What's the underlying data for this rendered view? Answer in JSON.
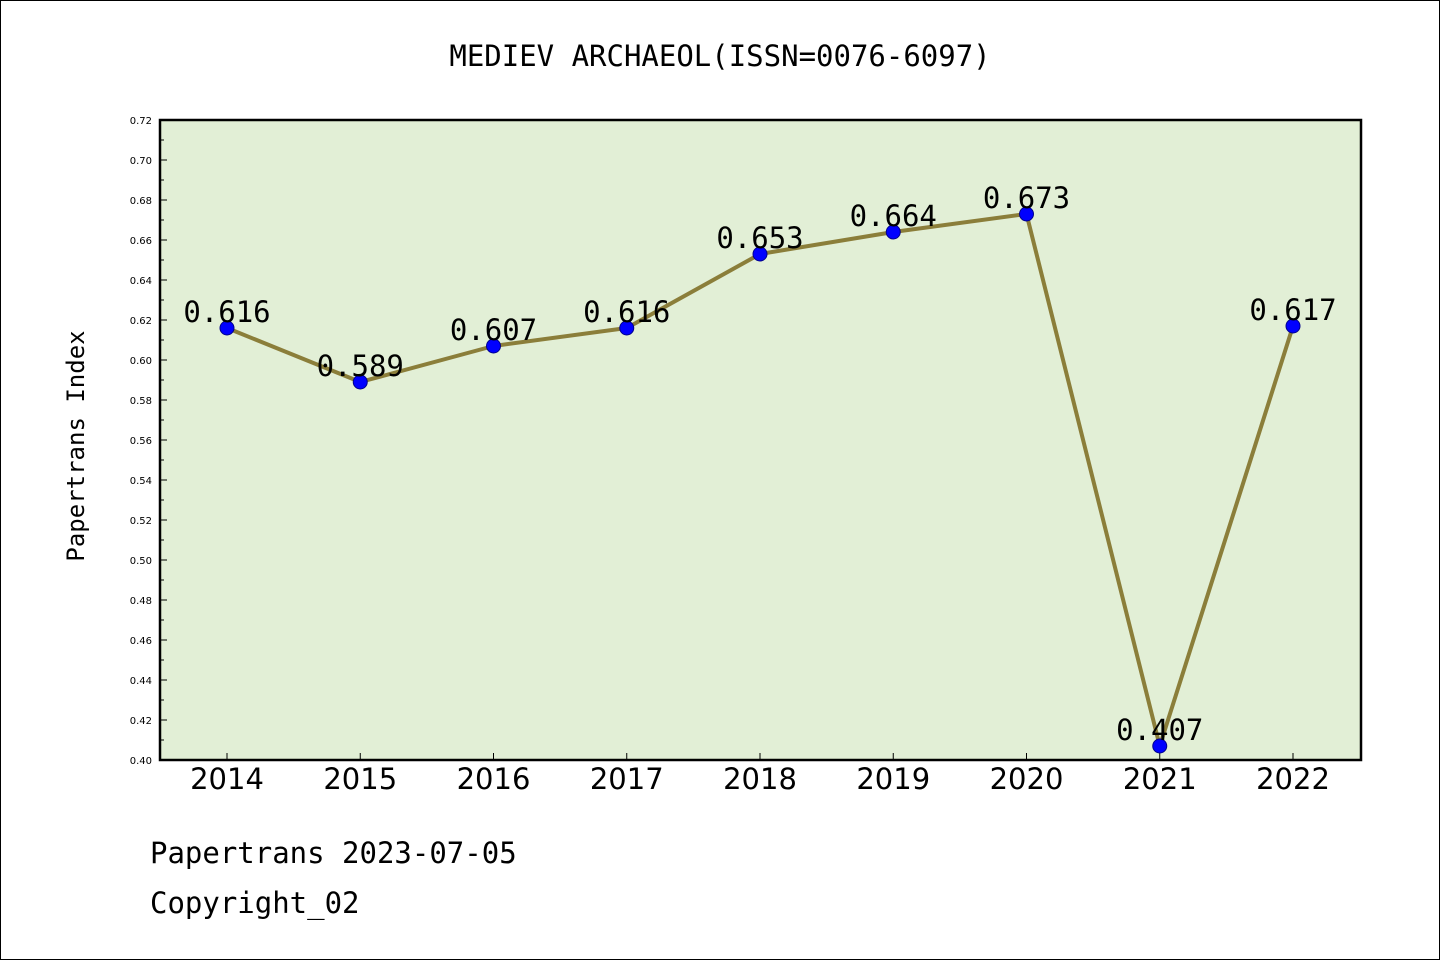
{
  "chart_data": {
    "type": "line",
    "title": "MEDIEV ARCHAEOL(ISSN=0076-6097)",
    "xlabel": "",
    "ylabel": "Papertrans Index",
    "categories": [
      "2014",
      "2015",
      "2016",
      "2017",
      "2018",
      "2019",
      "2020",
      "2021",
      "2022"
    ],
    "series": [
      {
        "values": [
          0.616,
          0.589,
          0.607,
          0.616,
          0.653,
          0.664,
          0.673,
          0.407,
          0.617
        ],
        "data_labels": [
          "0.616",
          "0.589",
          "0.607",
          "0.616",
          "0.653",
          "0.664",
          "0.673",
          "0.407",
          "0.617"
        ]
      }
    ],
    "ylim": [
      0.4,
      0.72
    ],
    "yticks": [
      "0.40",
      "0.42",
      "0.44",
      "0.46",
      "0.48",
      "0.50",
      "0.52",
      "0.54",
      "0.56",
      "0.58",
      "0.60",
      "0.62",
      "0.64",
      "0.66",
      "0.68",
      "0.70",
      "0.72"
    ],
    "grid": false,
    "legend": "none",
    "colors": {
      "plot_background": "#e2efd6",
      "line": "#8b7e3a",
      "marker": "#0000ff"
    }
  },
  "footer": {
    "line1": "Papertrans 2023-07-05",
    "line2": "Copyright_02"
  }
}
